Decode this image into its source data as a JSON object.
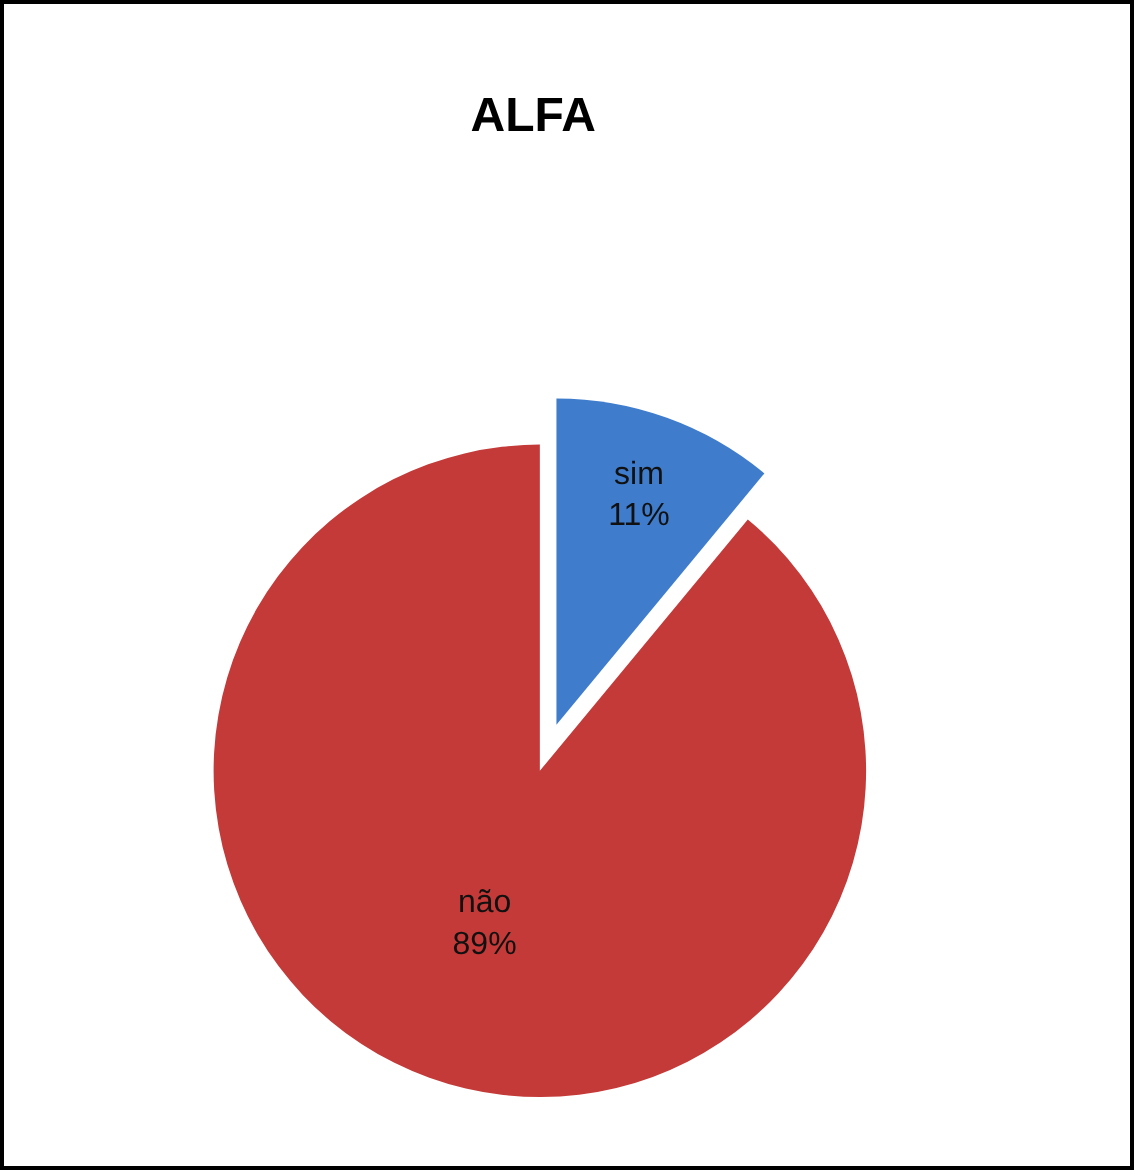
{
  "chart_data": {
    "type": "pie",
    "title": "ALFA",
    "categories": [
      "sim",
      "não"
    ],
    "values": [
      11,
      89
    ],
    "value_labels": [
      "11%",
      "89%"
    ],
    "colors": [
      "#3f7ccc",
      "#c43a38"
    ],
    "legend": false
  }
}
